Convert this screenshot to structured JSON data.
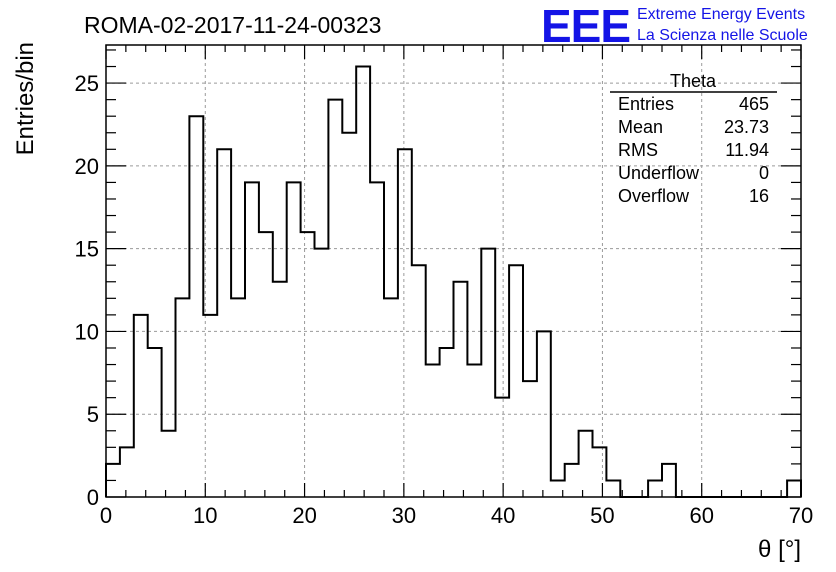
{
  "title": "ROMA-02-2017-11-24-00323",
  "logo": {
    "mark": "EEE",
    "line1": "Extreme Energy Events",
    "line2": "La Scienza nelle Scuole",
    "color": "#1414e6"
  },
  "stats": {
    "name": "Theta",
    "rows": [
      {
        "label": "Entries",
        "value": "465"
      },
      {
        "label": "Mean",
        "value": "23.73"
      },
      {
        "label": "RMS",
        "value": "11.94"
      },
      {
        "label": "Underflow",
        "value": "0"
      },
      {
        "label": "Overflow",
        "value": "16"
      }
    ]
  },
  "chart_data": {
    "type": "histogram",
    "xlabel": "θ [°]",
    "ylabel": "Entries/bin",
    "xlim": [
      0,
      70
    ],
    "ylim": [
      0,
      27.3
    ],
    "bin_width": 1.4,
    "bin_edges_start": 0,
    "values": [
      2,
      3,
      11,
      9,
      4,
      12,
      23,
      11,
      21,
      12,
      19,
      16,
      13,
      19,
      16,
      15,
      24,
      22,
      26,
      19,
      12,
      21,
      14,
      8,
      9,
      13,
      8,
      15,
      6,
      14,
      7,
      10,
      1,
      2,
      4,
      3,
      1,
      0,
      0,
      1,
      2,
      0,
      0,
      0,
      0,
      0,
      0,
      0,
      0,
      1
    ],
    "x_ticks": [
      0,
      10,
      20,
      30,
      40,
      50,
      60,
      70
    ],
    "y_ticks": [
      0,
      5,
      10,
      15,
      20,
      25
    ],
    "grid": true
  }
}
